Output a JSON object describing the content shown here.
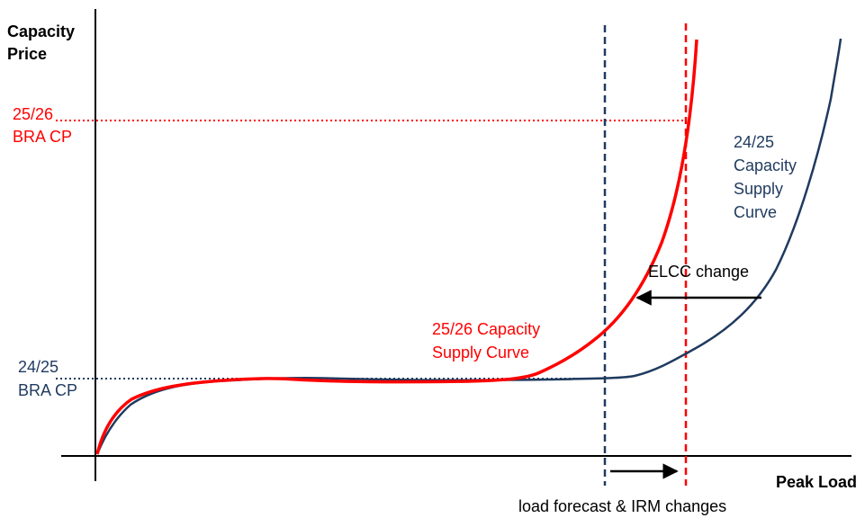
{
  "axes": {
    "y_label_line1": "Capacity",
    "y_label_line2": "Price",
    "x_label": "Peak Load"
  },
  "levels": {
    "bra_2526_line1": "25/26",
    "bra_2526_line2": "BRA CP",
    "bra_2425_line1": "24/25",
    "bra_2425_line2": "BRA CP"
  },
  "curves": {
    "curve_2425": {
      "label_line1": "24/25",
      "label_line2": "Capacity",
      "label_line3": "Supply",
      "label_line4": "Curve",
      "color": "#1f3a5f"
    },
    "curve_2526": {
      "label_line1": "25/26 Capacity",
      "label_line2": "Supply Curve",
      "color": "#ff0000"
    }
  },
  "annotations": {
    "elcc": "ELCC change",
    "load_irm": "load forecast & IRM changes"
  },
  "colors": {
    "navy": "#1f3a5f",
    "red": "#ff0000",
    "axis": "#000000"
  }
}
